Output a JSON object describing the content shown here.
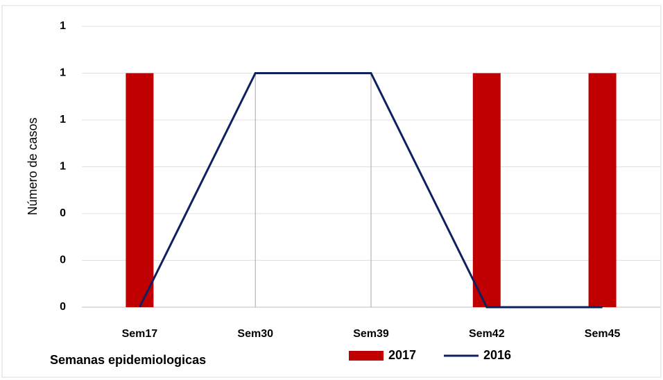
{
  "chart_data": {
    "type": "bar_line",
    "y_label": "Número de casos",
    "x_label": "Semanas epidemiologicas",
    "categories": [
      "Sem17",
      "Sem30",
      "Sem39",
      "Sem42",
      "Sem45"
    ],
    "series": [
      {
        "name": "2017",
        "type": "bar",
        "color": "#c00000",
        "values": [
          1,
          0,
          0,
          1,
          1
        ]
      },
      {
        "name": "2016",
        "type": "line",
        "color": "#0e2060",
        "values": [
          0,
          1,
          1,
          0,
          0
        ]
      }
    ],
    "ylim": [
      0,
      1.2
    ],
    "yticks": [
      0,
      {
        "value": 0.2,
        "label": "0"
      },
      {
        "value": 0.4,
        "label": "0"
      },
      {
        "value": 0.6,
        "label": "1"
      },
      {
        "value": 0.8,
        "label": "1"
      },
      1,
      {
        "value": 1.2,
        "label": "1"
      }
    ],
    "grid": true,
    "drop_lines": true,
    "legend": "bottom"
  }
}
